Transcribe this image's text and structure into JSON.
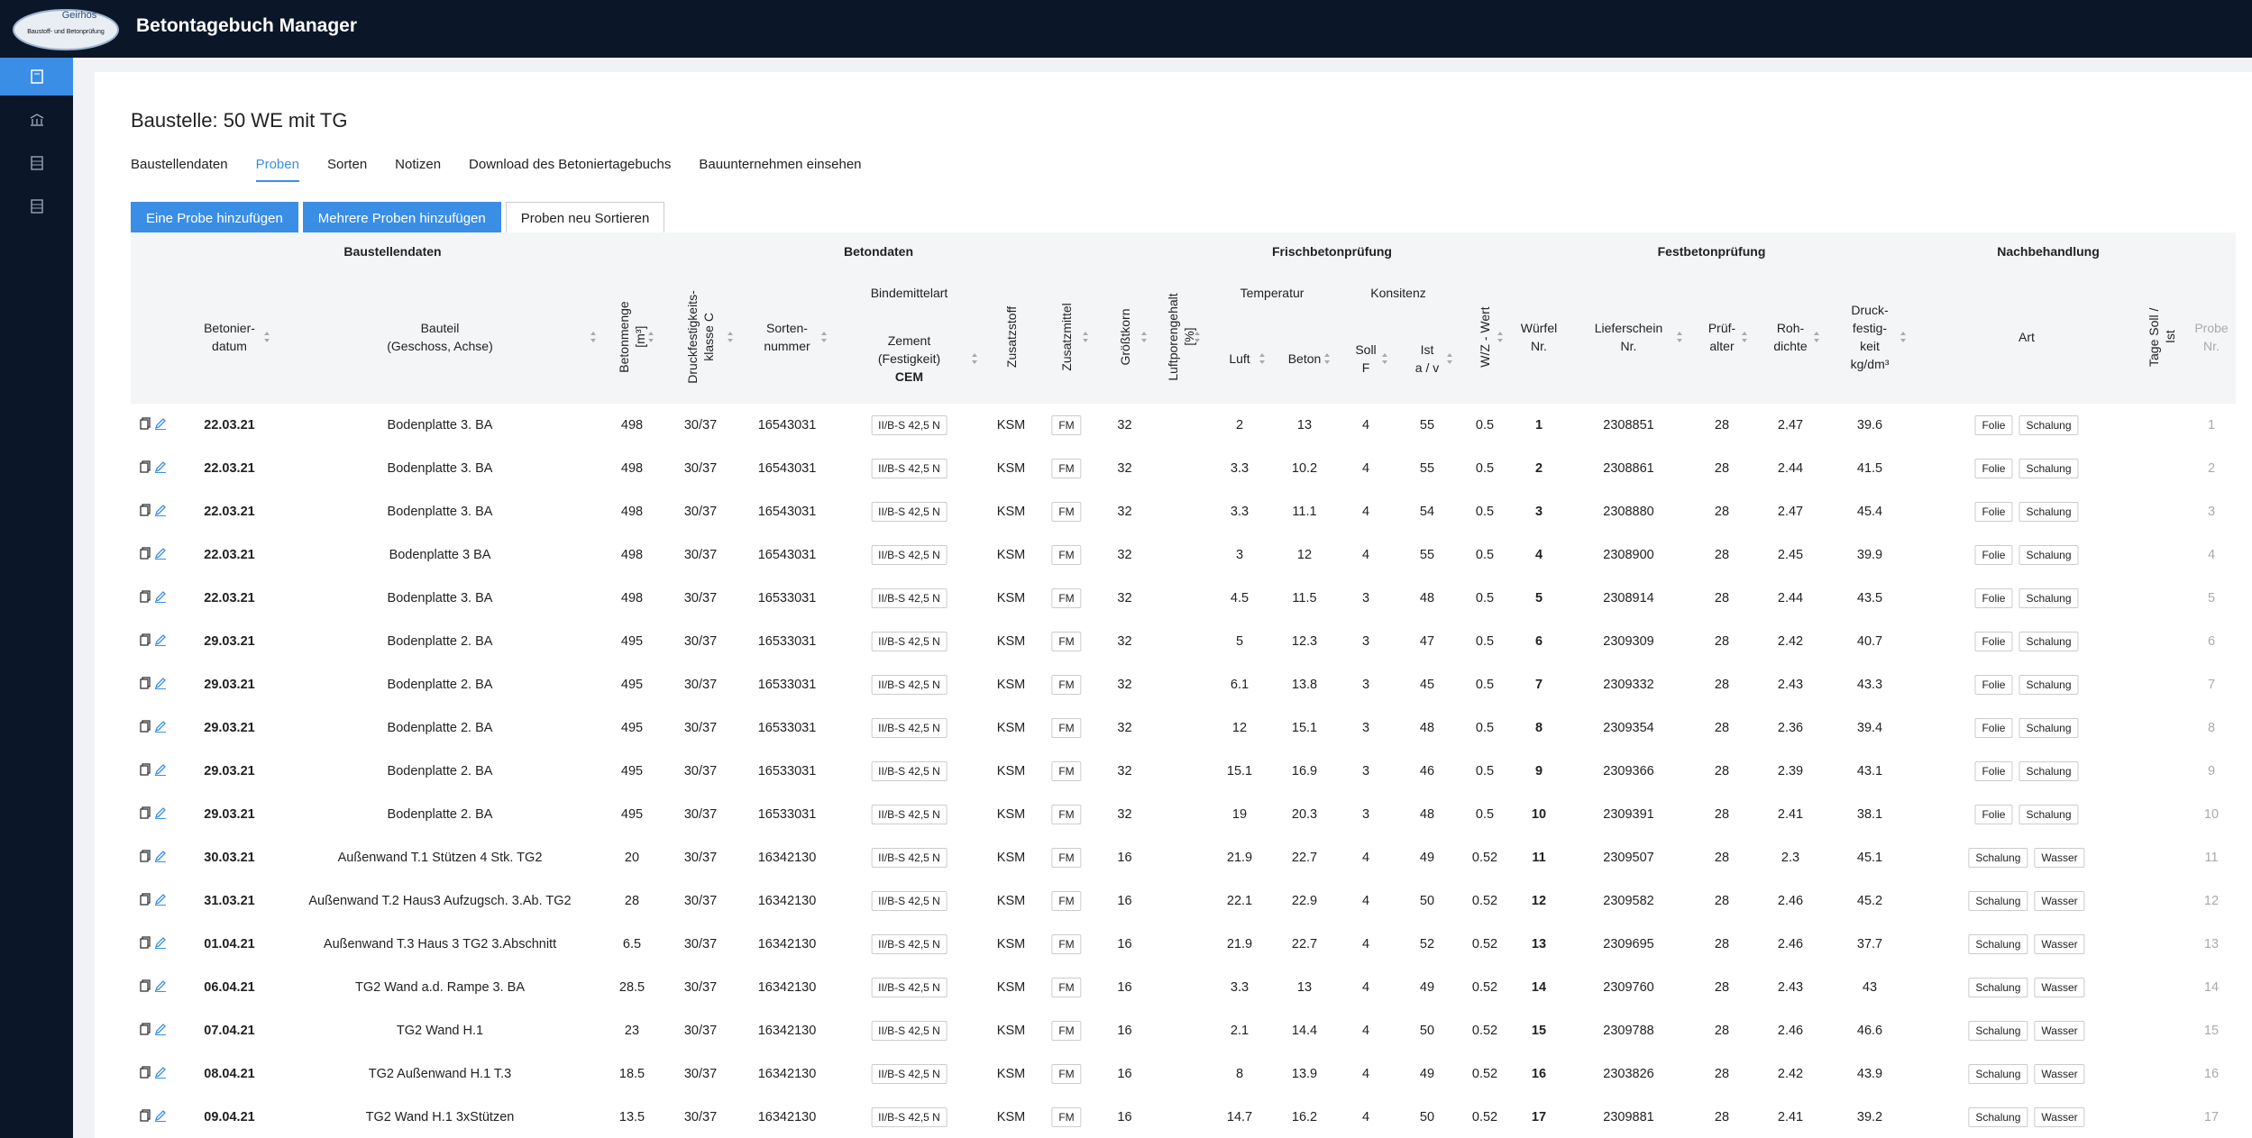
{
  "app": {
    "logo_name": "Geirhos",
    "logo_sub": "Baustoff- und Betonprüfung",
    "title": "Betontagebuch Manager"
  },
  "page": {
    "title": "Baustelle: 50 WE mit TG",
    "tabs": [
      "Baustellendaten",
      "Proben",
      "Sorten",
      "Notizen",
      "Download des Betoniertagebuchs",
      "Bauunternehmen einsehen"
    ],
    "active_tab": 1,
    "buttons": [
      "Eine Probe hinzufügen",
      "Mehrere Proben hinzufügen",
      "Proben neu Sortieren"
    ]
  },
  "table": {
    "groups": [
      {
        "label": "Baustellendaten",
        "span": 2
      },
      {
        "label": "Betondaten",
        "span": 7
      },
      {
        "label": "Frischbetonprüfung",
        "span": 6
      },
      {
        "label": "Festbetonprüfung",
        "span": 5
      },
      {
        "label": "Nachbehandlung",
        "span": 2
      }
    ],
    "subgroups": [
      {
        "label": "Bindemittelart",
        "start": 5,
        "span": 1
      },
      {
        "label": "Temperatur",
        "start": 10,
        "span": 2
      },
      {
        "label": "Konsitenz",
        "start": 12,
        "span": 2
      }
    ],
    "columns": [
      {
        "label": "Betonier-\ndatum",
        "sortable": true,
        "cell": "bold"
      },
      {
        "label": "Bauteil\n(Geschoss, Achse)",
        "sortable": true
      },
      {
        "label": "Betonmenge [m³]",
        "rotated": true,
        "sortable": true
      },
      {
        "label": "Druckfestigkeits-\nklasse C",
        "rotated": true,
        "sortable": true
      },
      {
        "label": "Sorten-\nnummer",
        "sortable": true
      },
      {
        "label": "Zement\n(Festigkeit)",
        "label_bold": "CEM",
        "sortable": true,
        "cell": "tag"
      },
      {
        "label": "Zusatzstoff",
        "rotated": true
      },
      {
        "label": "Zusatzmittel",
        "rotated": true,
        "sortable": true,
        "cell": "tag"
      },
      {
        "label": "Größtkorn",
        "rotated": true,
        "sortable": true
      },
      {
        "label": "Luftporengehalt [%]",
        "rotated": true,
        "sortable": true
      },
      {
        "label": "Luft",
        "sortable": true
      },
      {
        "label": "Beton",
        "sortable": true
      },
      {
        "label": "Soll\nF",
        "sortable": true
      },
      {
        "label": "Ist\na / v",
        "sortable": true
      },
      {
        "label": "W/Z - Wert",
        "rotated": true,
        "sortable": true
      },
      {
        "label": "Würfel\nNr.",
        "cell": "bold"
      },
      {
        "label": "Lieferschein\nNr.",
        "sortable": true
      },
      {
        "label": "Prüf-\nalter",
        "sortable": true
      },
      {
        "label": "Roh-\ndichte",
        "sortable": true
      },
      {
        "label": "Druck-\nfestig-\nkeit\nkg/dm³",
        "sortable": true
      },
      {
        "label": "Art",
        "cell": "tags"
      },
      {
        "label": "Tage Soll / Ist",
        "rotated": true
      },
      {
        "label": "Probe\nNr.",
        "cell": "muted"
      }
    ],
    "rows": [
      [
        "22.03.21",
        "Bodenplatte 3. BA",
        498,
        "30/37",
        16543031,
        "II/B-S 42,5 N",
        "KSM",
        "FM",
        32,
        null,
        2,
        13,
        4,
        55,
        0.5,
        1,
        2308851,
        28,
        2.47,
        39.6,
        [
          "Folie",
          "Schalung"
        ],
        null,
        1
      ],
      [
        "22.03.21",
        "Bodenplatte 3. BA",
        498,
        "30/37",
        16543031,
        "II/B-S 42,5 N",
        "KSM",
        "FM",
        32,
        null,
        3.3,
        10.2,
        4,
        55,
        0.5,
        2,
        2308861,
        28,
        2.44,
        41.5,
        [
          "Folie",
          "Schalung"
        ],
        null,
        2
      ],
      [
        "22.03.21",
        "Bodenplatte 3. BA",
        498,
        "30/37",
        16543031,
        "II/B-S 42,5 N",
        "KSM",
        "FM",
        32,
        null,
        3.3,
        11.1,
        4,
        54,
        0.5,
        3,
        2308880,
        28,
        2.47,
        45.4,
        [
          "Folie",
          "Schalung"
        ],
        null,
        3
      ],
      [
        "22.03.21",
        "Bodenplatte 3 BA",
        498,
        "30/37",
        16543031,
        "II/B-S 42,5 N",
        "KSM",
        "FM",
        32,
        null,
        3,
        12,
        4,
        55,
        0.5,
        4,
        2308900,
        28,
        2.45,
        39.9,
        [
          "Folie",
          "Schalung"
        ],
        null,
        4
      ],
      [
        "22.03.21",
        "Bodenplatte 3. BA",
        498,
        "30/37",
        16533031,
        "II/B-S 42,5 N",
        "KSM",
        "FM",
        32,
        null,
        4.5,
        11.5,
        3,
        48,
        0.5,
        5,
        2308914,
        28,
        2.44,
        43.5,
        [
          "Folie",
          "Schalung"
        ],
        null,
        5
      ],
      [
        "29.03.21",
        "Bodenplatte 2. BA",
        495,
        "30/37",
        16533031,
        "II/B-S 42,5 N",
        "KSM",
        "FM",
        32,
        null,
        5,
        12.3,
        3,
        47,
        0.5,
        6,
        2309309,
        28,
        2.42,
        40.7,
        [
          "Folie",
          "Schalung"
        ],
        null,
        6
      ],
      [
        "29.03.21",
        "Bodenplatte 2. BA",
        495,
        "30/37",
        16533031,
        "II/B-S 42,5 N",
        "KSM",
        "FM",
        32,
        null,
        6.1,
        13.8,
        3,
        45,
        0.5,
        7,
        2309332,
        28,
        2.43,
        43.3,
        [
          "Folie",
          "Schalung"
        ],
        null,
        7
      ],
      [
        "29.03.21",
        "Bodenplatte 2. BA",
        495,
        "30/37",
        16533031,
        "II/B-S 42,5 N",
        "KSM",
        "FM",
        32,
        null,
        12,
        15.1,
        3,
        48,
        0.5,
        8,
        2309354,
        28,
        2.36,
        39.4,
        [
          "Folie",
          "Schalung"
        ],
        null,
        8
      ],
      [
        "29.03.21",
        "Bodenplatte 2. BA",
        495,
        "30/37",
        16533031,
        "II/B-S 42,5 N",
        "KSM",
        "FM",
        32,
        null,
        15.1,
        16.9,
        3,
        46,
        0.5,
        9,
        2309366,
        28,
        2.39,
        43.1,
        [
          "Folie",
          "Schalung"
        ],
        null,
        9
      ],
      [
        "29.03.21",
        "Bodenplatte 2. BA",
        495,
        "30/37",
        16533031,
        "II/B-S 42,5 N",
        "KSM",
        "FM",
        32,
        null,
        19,
        20.3,
        3,
        48,
        0.5,
        10,
        2309391,
        28,
        2.41,
        38.1,
        [
          "Folie",
          "Schalung"
        ],
        null,
        10
      ],
      [
        "30.03.21",
        "Außenwand T.1 Stützen 4 Stk. TG2",
        20,
        "30/37",
        16342130,
        "II/B-S 42,5 N",
        "KSM",
        "FM",
        16,
        null,
        21.9,
        22.7,
        4,
        49,
        0.52,
        11,
        2309507,
        28,
        2.3,
        45.1,
        [
          "Schalung",
          "Wasser"
        ],
        null,
        11
      ],
      [
        "31.03.21",
        "Außenwand T.2 Haus3 Aufzugsch. 3.Ab. TG2",
        28,
        "30/37",
        16342130,
        "II/B-S 42,5 N",
        "KSM",
        "FM",
        16,
        null,
        22.1,
        22.9,
        4,
        50,
        0.52,
        12,
        2309582,
        28,
        2.46,
        45.2,
        [
          "Schalung",
          "Wasser"
        ],
        null,
        12
      ],
      [
        "01.04.21",
        "Außenwand T.3 Haus 3 TG2 3.Abschnitt",
        6.5,
        "30/37",
        16342130,
        "II/B-S 42,5 N",
        "KSM",
        "FM",
        16,
        null,
        21.9,
        22.7,
        4,
        52,
        0.52,
        13,
        2309695,
        28,
        2.46,
        37.7,
        [
          "Schalung",
          "Wasser"
        ],
        null,
        13
      ],
      [
        "06.04.21",
        "TG2 Wand a.d. Rampe 3. BA",
        28.5,
        "30/37",
        16342130,
        "II/B-S 42,5 N",
        "KSM",
        "FM",
        16,
        null,
        3.3,
        13,
        4,
        49,
        0.52,
        14,
        2309760,
        28,
        2.43,
        43,
        [
          "Schalung",
          "Wasser"
        ],
        null,
        14
      ],
      [
        "07.04.21",
        "TG2 Wand H.1",
        23,
        "30/37",
        16342130,
        "II/B-S 42,5 N",
        "KSM",
        "FM",
        16,
        null,
        2.1,
        14.4,
        4,
        50,
        0.52,
        15,
        2309788,
        28,
        2.46,
        46.6,
        [
          "Schalung",
          "Wasser"
        ],
        null,
        15
      ],
      [
        "08.04.21",
        "TG2 Außenwand H.1 T.3",
        18.5,
        "30/37",
        16342130,
        "II/B-S 42,5 N",
        "KSM",
        "FM",
        16,
        null,
        8,
        13.9,
        4,
        49,
        0.52,
        16,
        2303826,
        28,
        2.42,
        43.9,
        [
          "Schalung",
          "Wasser"
        ],
        null,
        16
      ],
      [
        "09.04.21",
        "TG2 Wand H.1 3xStützen",
        13.5,
        "30/37",
        16342130,
        "II/B-S 42,5 N",
        "KSM",
        "FM",
        16,
        null,
        14.7,
        16.2,
        4,
        50,
        0.52,
        17,
        2309881,
        28,
        2.41,
        39.2,
        [
          "Schalung",
          "Wasser"
        ],
        null,
        17
      ]
    ]
  }
}
